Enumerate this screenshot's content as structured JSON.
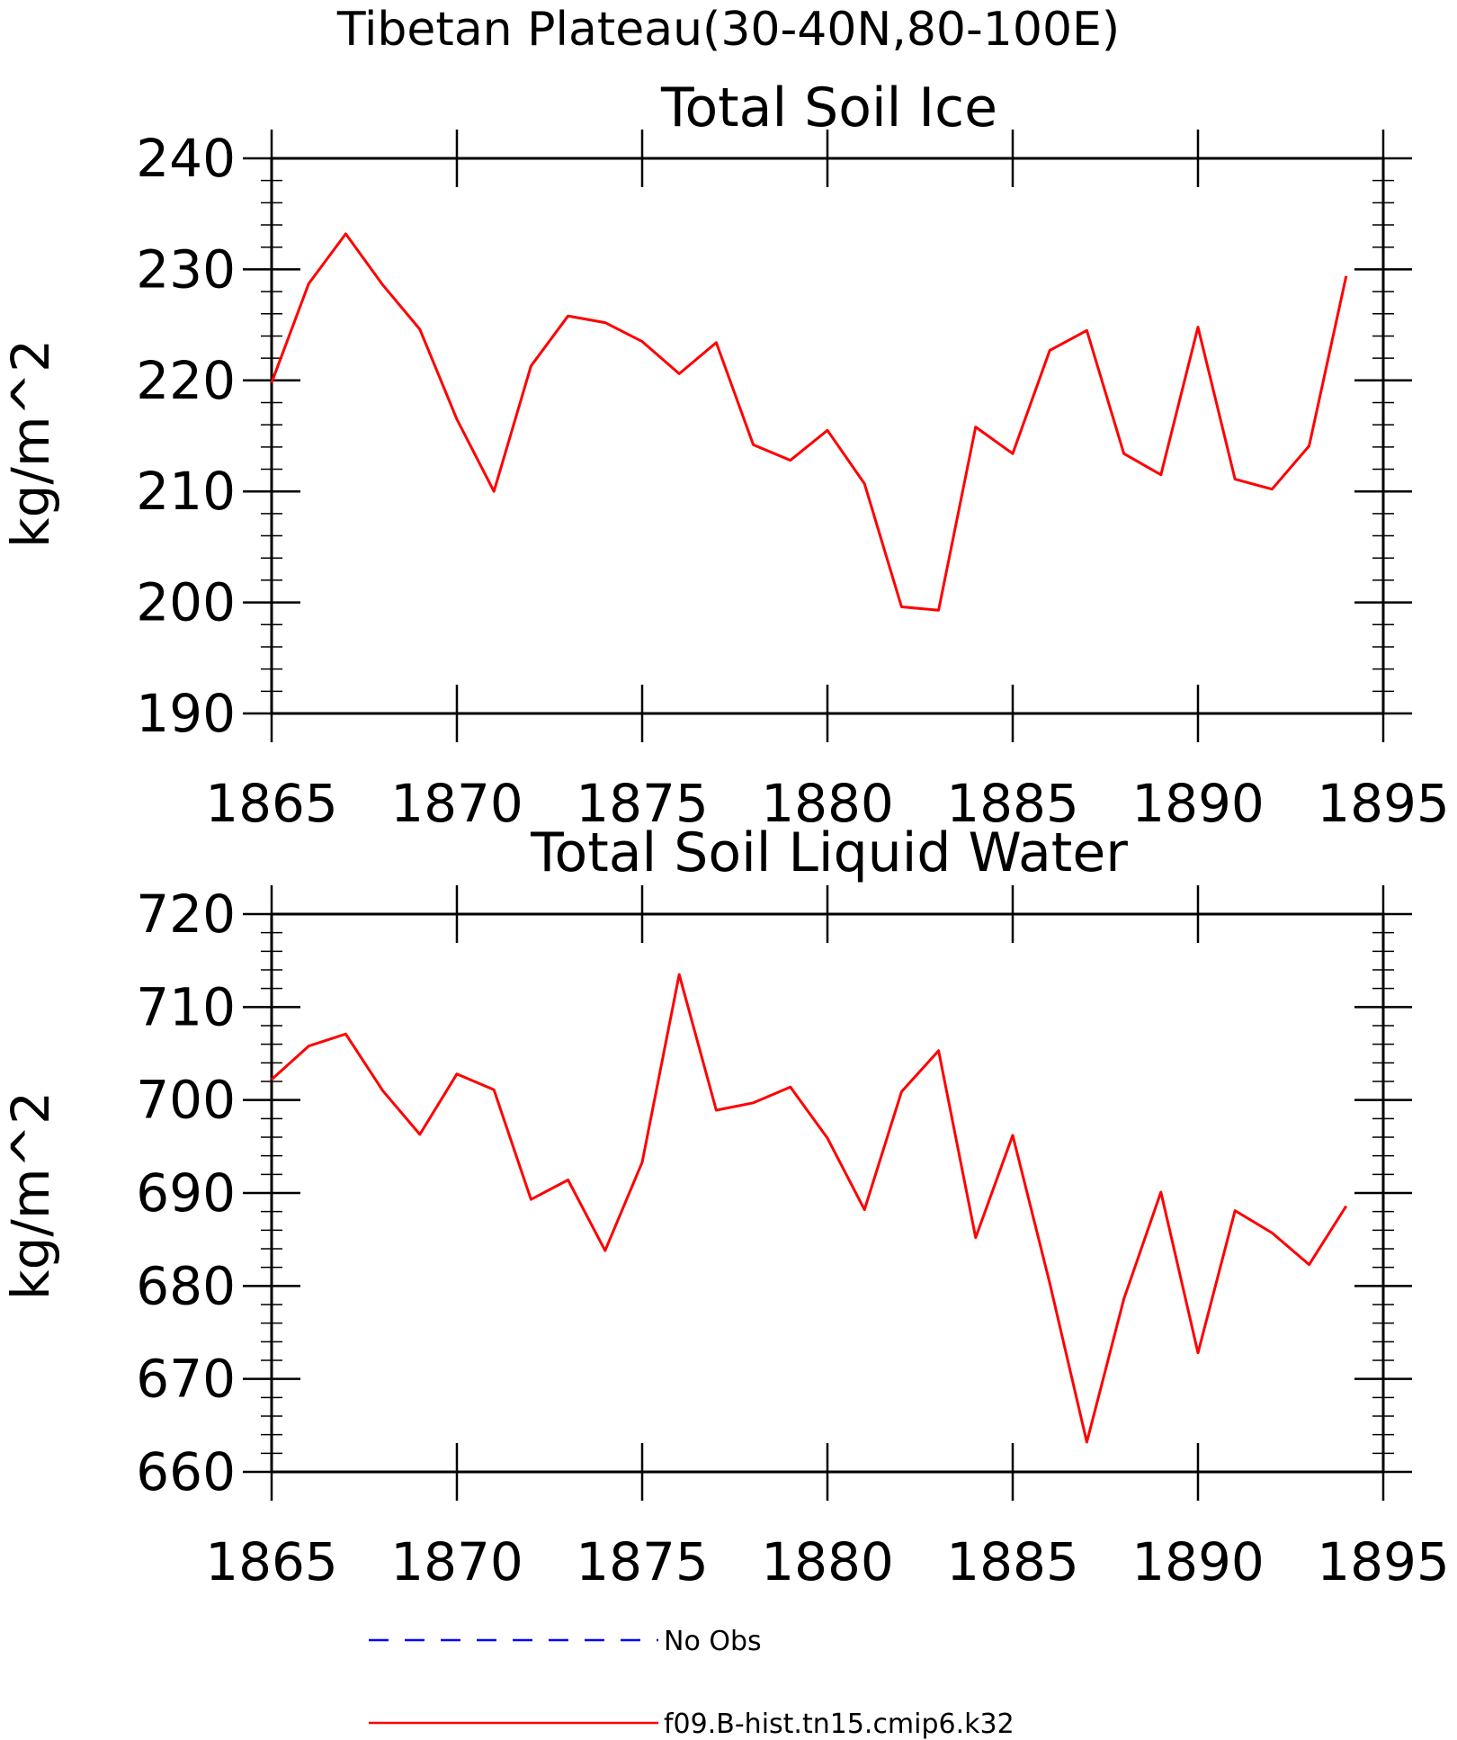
{
  "title": "Tibetan Plateau(30-40N,80-100E)",
  "chart_data": [
    {
      "type": "line",
      "title": "Total Soil Ice",
      "xlabel": "",
      "ylabel": "kg/m^2",
      "xlim": [
        1865,
        1895
      ],
      "ylim": [
        190,
        240
      ],
      "xticks": [
        1865,
        1870,
        1875,
        1880,
        1885,
        1890,
        1895
      ],
      "yticks": [
        190,
        200,
        210,
        220,
        230,
        240
      ],
      "x": [
        1865,
        1866,
        1867,
        1868,
        1869,
        1870,
        1871,
        1872,
        1873,
        1874,
        1875,
        1876,
        1877,
        1878,
        1879,
        1880,
        1881,
        1882,
        1883,
        1884,
        1885,
        1886,
        1887,
        1888,
        1889,
        1890,
        1891,
        1892,
        1893,
        1894
      ],
      "series": [
        {
          "name": "f09.B-hist.tn15.cmip6.k32",
          "color": "#ff0000",
          "values": [
            219.8,
            228.7,
            233.2,
            228.6,
            224.6,
            216.5,
            210.0,
            221.3,
            225.8,
            225.2,
            223.5,
            220.6,
            223.4,
            214.2,
            212.8,
            215.5,
            210.7,
            199.6,
            199.3,
            215.8,
            213.4,
            222.7,
            224.5,
            213.4,
            211.5,
            224.8,
            211.1,
            210.2,
            214.1,
            229.4
          ]
        }
      ]
    },
    {
      "type": "line",
      "title": "Total Soil Liquid Water",
      "xlabel": "",
      "ylabel": "kg/m^2",
      "xlim": [
        1865,
        1895
      ],
      "ylim": [
        660,
        720
      ],
      "xticks": [
        1865,
        1870,
        1875,
        1880,
        1885,
        1890,
        1895
      ],
      "yticks": [
        660,
        670,
        680,
        690,
        700,
        710,
        720
      ],
      "x": [
        1865,
        1866,
        1867,
        1868,
        1869,
        1870,
        1871,
        1872,
        1873,
        1874,
        1875,
        1876,
        1877,
        1878,
        1879,
        1880,
        1881,
        1882,
        1883,
        1884,
        1885,
        1886,
        1887,
        1888,
        1889,
        1890,
        1891,
        1892,
        1893,
        1894
      ],
      "series": [
        {
          "name": "f09.B-hist.tn15.cmip6.k32",
          "color": "#ff0000",
          "values": [
            702.2,
            705.8,
            707.1,
            701.0,
            696.3,
            702.8,
            701.1,
            689.3,
            691.4,
            683.8,
            693.3,
            713.5,
            698.9,
            699.7,
            701.4,
            695.9,
            688.2,
            700.9,
            705.3,
            685.2,
            696.2,
            680.3,
            663.2,
            678.6,
            690.1,
            672.8,
            688.1,
            685.7,
            682.3,
            688.6
          ]
        }
      ]
    }
  ],
  "legend": [
    {
      "label": "No Obs",
      "color": "#0000ff",
      "style": "dashed"
    },
    {
      "label": "f09.B-hist.tn15.cmip6.k32",
      "color": "#ff0000",
      "style": "solid"
    }
  ]
}
